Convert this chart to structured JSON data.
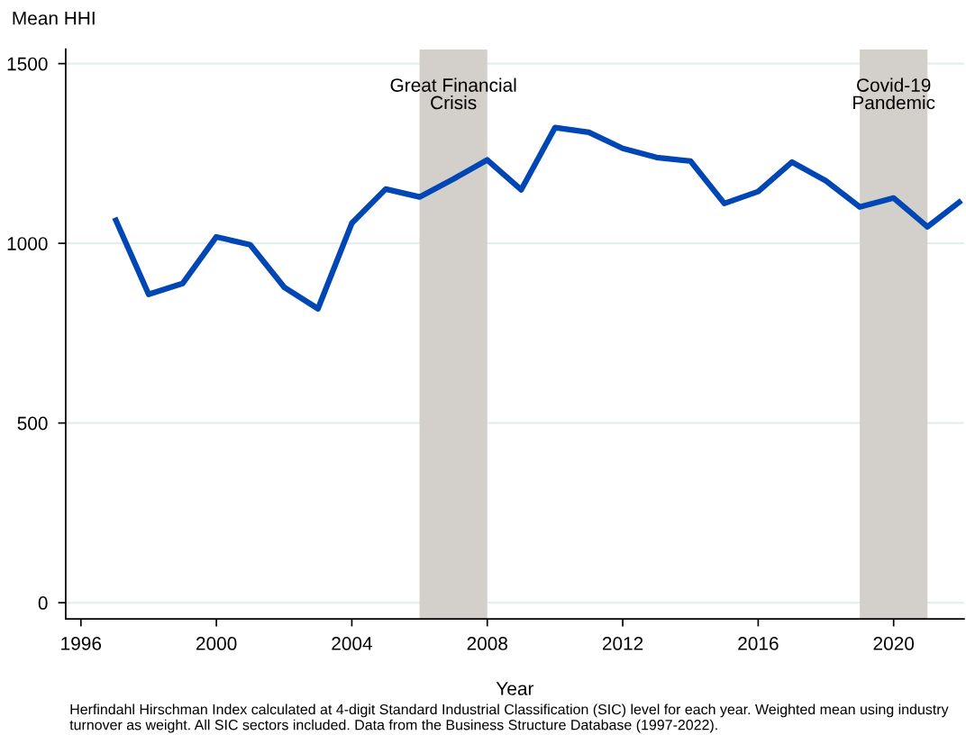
{
  "chart_data": {
    "type": "line",
    "ylabel": "Mean HHI",
    "xlabel": "Year",
    "x": [
      1997,
      1998,
      1999,
      2000,
      2001,
      2002,
      2003,
      2004,
      2005,
      2006,
      2007,
      2008,
      2009,
      2010,
      2011,
      2012,
      2013,
      2014,
      2015,
      2016,
      2017,
      2018,
      2019,
      2020,
      2021,
      2022
    ],
    "series": [
      {
        "color": "#0046b4",
        "values": [
          1071,
          858,
          888,
          1018,
          996,
          878,
          818,
          1056,
          1151,
          1129,
          1179,
          1232,
          1149,
          1322,
          1309,
          1264,
          1239,
          1229,
          1111,
          1144,
          1226,
          1174,
          1101,
          1126,
          1046,
          1119
        ]
      }
    ],
    "xlim": [
      1995.55,
      2022.08
    ],
    "ylim": [
      -45,
      1540
    ],
    "xticks": [
      1996,
      2000,
      2004,
      2008,
      2012,
      2016,
      2020
    ],
    "yticks": [
      0,
      500,
      1000,
      1500
    ],
    "grid": "y",
    "marker": "none",
    "line_style": "solid",
    "bands": [
      {
        "axis": "x",
        "from": 2006,
        "to": 2008,
        "label": "Great Financial\nCrisis",
        "color": "#d3d0cb"
      },
      {
        "axis": "x",
        "from": 2019,
        "to": 2021,
        "label": "Covid-19\nPandemic",
        "color": "#d3d0cb"
      }
    ],
    "annotations": [
      "Herfindahl Hirschman Index calculated at 4-digit Standard Industrial Classification (SIC) level for each year. Weighted mean using industry turnover as weight. All SIC sectors included. Data from the Business Structure Database (1997-2022)."
    ]
  }
}
